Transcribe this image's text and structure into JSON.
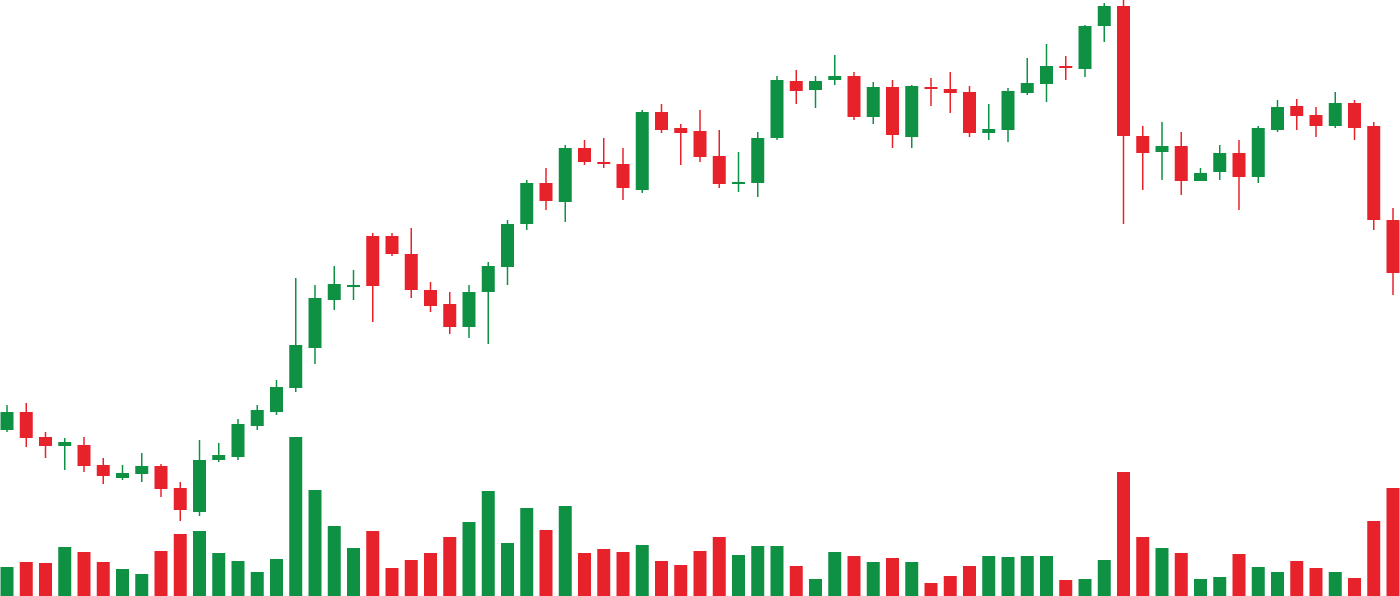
{
  "chart_data": {
    "type": "candlestick",
    "up_color": "#0f9144",
    "down_color": "#e8222b",
    "ylim": [
      4,
      600
    ],
    "volume_ylim": [
      0,
      596
    ],
    "open": [
      170,
      188,
      163,
      154,
      155,
      135,
      122,
      126,
      134,
      112,
      88,
      140,
      143,
      174,
      188,
      212,
      252,
      300,
      313,
      364,
      364,
      346,
      310,
      296,
      273,
      308,
      333,
      376,
      417,
      398,
      452,
      438,
      436,
      410,
      488,
      472,
      469,
      444,
      416,
      417,
      462,
      519,
      510,
      520,
      524,
      483,
      513,
      463,
      513,
      511,
      508,
      467,
      470,
      507,
      516,
      534,
      531,
      574,
      594,
      464,
      448,
      454,
      419,
      428,
      447,
      423,
      470,
      494,
      485,
      474,
      497,
      474,
      380
    ],
    "high": [
      195,
      197,
      168,
      162,
      163,
      142,
      135,
      147,
      136,
      118,
      160,
      157,
      181,
      195,
      220,
      322,
      315,
      334,
      330,
      367,
      367,
      372,
      318,
      308,
      315,
      338,
      380,
      420,
      432,
      455,
      460,
      462,
      452,
      490,
      496,
      476,
      490,
      470,
      448,
      468,
      524,
      530,
      524,
      545,
      528,
      518,
      520,
      515,
      522,
      528,
      514,
      496,
      512,
      542,
      556,
      544,
      575,
      597,
      600,
      474,
      478,
      468,
      432,
      455,
      460,
      474,
      500,
      501,
      493,
      508,
      500,
      478,
      392
    ],
    "low": [
      168,
      153,
      142,
      130,
      128,
      116,
      120,
      118,
      103,
      79,
      84,
      138,
      140,
      170,
      185,
      208,
      236,
      290,
      300,
      278,
      344,
      302,
      288,
      266,
      262,
      256,
      315,
      370,
      390,
      378,
      435,
      432,
      400,
      407,
      467,
      435,
      438,
      412,
      408,
      403,
      460,
      496,
      492,
      515,
      480,
      476,
      452,
      452,
      494,
      487,
      463,
      460,
      458,
      505,
      498,
      520,
      523,
      558,
      376,
      410,
      420,
      405,
      420,
      420,
      390,
      417,
      468,
      470,
      463,
      472,
      460,
      370,
      305
    ],
    "close": [
      188,
      162,
      154,
      158,
      134,
      124,
      127,
      134,
      111,
      90,
      140,
      145,
      176,
      190,
      213,
      255,
      302,
      316,
      315,
      314,
      346,
      310,
      294,
      273,
      308,
      334,
      376,
      417,
      399,
      452,
      438,
      436,
      412,
      488,
      470,
      467,
      443,
      416,
      418,
      462,
      520,
      509,
      519,
      524,
      483,
      513,
      465,
      514,
      511,
      507,
      467,
      471,
      509,
      517,
      534,
      532,
      574,
      594,
      464,
      447,
      454,
      419,
      427,
      447,
      423,
      472,
      493,
      484,
      474,
      497,
      472,
      380,
      327
    ],
    "volume": [
      29,
      34,
      33,
      49,
      44,
      34,
      27,
      22,
      45,
      62,
      65,
      43,
      35,
      24,
      37,
      159,
      106,
      70,
      48,
      65,
      28,
      36,
      43,
      59,
      74,
      105,
      53,
      88,
      66,
      90,
      43,
      47,
      44,
      51,
      35,
      31,
      45,
      59,
      41,
      50,
      50,
      30,
      17,
      44,
      40,
      34,
      38,
      34,
      13,
      20,
      30,
      40,
      39,
      40,
      40,
      16,
      17,
      36,
      124,
      59,
      48,
      43,
      17,
      19,
      42,
      29,
      24,
      35,
      28,
      24,
      18,
      75,
      108
    ]
  }
}
